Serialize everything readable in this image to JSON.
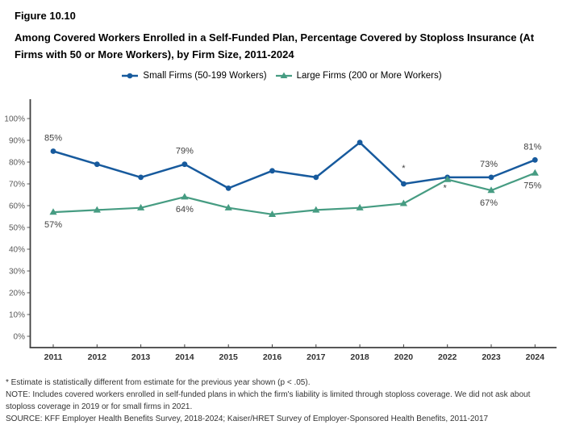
{
  "figure_label": "Figure 10.10",
  "title": "Among Covered Workers Enrolled in a Self-Funded Plan, Percentage Covered by Stoploss Insurance (At Firms with 50 or More Workers), by Firm Size, 2011-2024",
  "legend": {
    "small_label": "Small Firms (50-199 Workers)",
    "large_label": "Large Firms (200 or More Workers)"
  },
  "colors": {
    "small": "#175A9D",
    "large": "#469C82",
    "axis": "#3F3F3F",
    "y_tick_label": "#595959",
    "year_label": "#333333",
    "data_label": "#3F3F3F"
  },
  "chart_data": {
    "type": "line",
    "title": "Among Covered Workers Enrolled in a Self-Funded Plan, Percentage Covered by Stoploss Insurance (At Firms with 50 or More Workers), by Firm Size, 2011-2024",
    "xlabel": "",
    "ylabel": "",
    "ylim": [
      0,
      100
    ],
    "grid": false,
    "legend_position": "top",
    "categories": [
      "2011",
      "2012",
      "2013",
      "2014",
      "2015",
      "2016",
      "2017",
      "2018",
      "2020",
      "2022",
      "2023",
      "2024"
    ],
    "series": [
      {
        "name": "Small Firms (50-199 Workers)",
        "marker": "circle",
        "values": [
          85,
          79,
          73,
          79,
          68,
          76,
          73,
          89,
          70,
          73,
          73,
          81
        ]
      },
      {
        "name": "Large Firms (200 or More Workers)",
        "marker": "triangle",
        "values": [
          57,
          58,
          59,
          64,
          59,
          56,
          58,
          59,
          61,
          72,
          67,
          75
        ]
      }
    ],
    "y_tick_labels": [
      "0%",
      "10%",
      "20%",
      "30%",
      "40%",
      "50%",
      "60%",
      "70%",
      "80%",
      "90%",
      "100%"
    ],
    "point_labels": [
      {
        "series": 0,
        "index": 0,
        "text": "85%",
        "position": "above"
      },
      {
        "series": 1,
        "index": 0,
        "text": "57%",
        "position": "below"
      },
      {
        "series": 0,
        "index": 3,
        "text": "79%",
        "position": "above"
      },
      {
        "series": 1,
        "index": 3,
        "text": "64%",
        "position": "below"
      },
      {
        "series": 0,
        "index": 10,
        "text": "73%",
        "position": "above"
      },
      {
        "series": 1,
        "index": 10,
        "text": "67%",
        "position": "below"
      },
      {
        "series": 0,
        "index": 11,
        "text": "81%",
        "position": "above"
      },
      {
        "series": 1,
        "index": 11,
        "text": "75%",
        "position": "below"
      },
      {
        "series": 0,
        "index": 8,
        "text": "*",
        "position": "above"
      },
      {
        "series": 1,
        "index": 9,
        "text": "*",
        "position": "below"
      }
    ]
  },
  "footnotes": {
    "significance": "* Estimate is statistically different from estimate for the previous year shown (p < .05).",
    "note": "NOTE: Includes covered workers enrolled in self-funded plans in which the firm's liability is limited through stoploss coverage. We did not ask about stoploss coverage in 2019 or for small firms in 2021.",
    "source": "SOURCE: KFF Employer Health Benefits Survey, 2018-2024; Kaiser/HRET Survey of Employer-Sponsored Health Benefits, 2011-2017"
  }
}
